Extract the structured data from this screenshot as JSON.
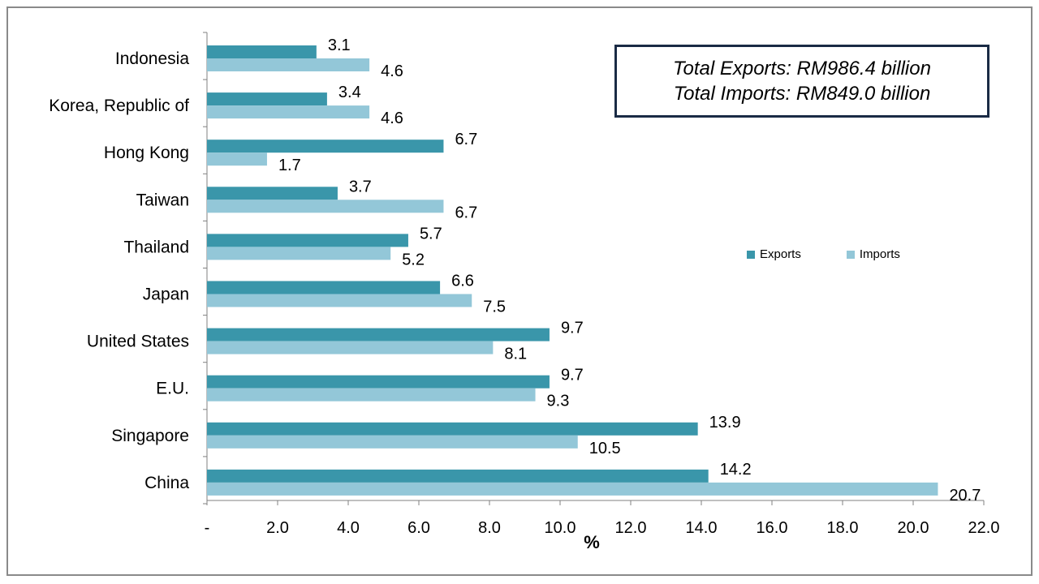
{
  "colors": {
    "exports": "#3a96aa",
    "imports": "#93c7d8",
    "axis": "#808080",
    "box_border": "#1a2b45"
  },
  "info_box": {
    "line1": "Total Exports: RM986.4 billion",
    "line2": "Total Imports: RM849.0 billion"
  },
  "chart_data": {
    "type": "bar",
    "orientation": "horizontal",
    "categories": [
      "Indonesia",
      "Korea, Republic of",
      "Hong Kong",
      "Taiwan",
      "Thailand",
      "Japan",
      "United States",
      "E.U.",
      "Singapore",
      "China"
    ],
    "series": [
      {
        "name": "Exports",
        "values": [
          3.1,
          3.4,
          6.7,
          3.7,
          5.7,
          6.6,
          9.7,
          9.7,
          13.9,
          14.2
        ]
      },
      {
        "name": "Imports",
        "values": [
          4.6,
          4.6,
          1.7,
          6.7,
          5.2,
          7.5,
          8.1,
          9.3,
          10.5,
          20.7
        ]
      }
    ],
    "value_labels": {
      "Exports": [
        "3.1",
        "3.4",
        "6.7",
        "3.7",
        "5.7",
        "6.6",
        "9.7",
        "9.7",
        "13.9",
        "14.2"
      ],
      "Imports": [
        "4.6",
        "4.6",
        "1.7",
        "6.7",
        "5.2",
        "7.5",
        "8.1",
        "9.3",
        "10.5",
        "20.7"
      ]
    },
    "xlabel": "%",
    "xlim": [
      0,
      22
    ],
    "xticks": [
      0,
      2,
      4,
      6,
      8,
      10,
      12,
      14,
      16,
      18,
      20,
      22
    ],
    "xtick_labels": [
      "-",
      "2.0",
      "4.0",
      "6.0",
      "8.0",
      "10.0",
      "12.0",
      "14.0",
      "16.0",
      "18.0",
      "20.0",
      "22.0"
    ],
    "legend": {
      "position": "right",
      "entries": [
        "Exports",
        "Imports"
      ]
    },
    "grid": false
  }
}
